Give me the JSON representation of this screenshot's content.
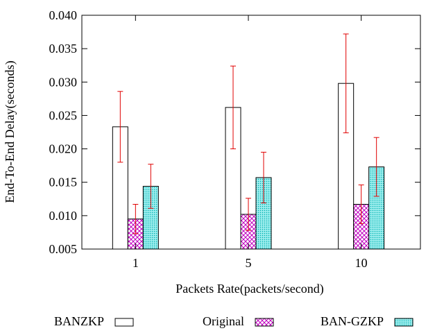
{
  "chart_data": {
    "type": "bar",
    "xlabel": "Packets Rate(packets/second)",
    "ylabel": "End-To-End Delay(seconds)",
    "ylim": [
      0.005,
      0.04
    ],
    "yticks": [
      "0.005",
      "0.010",
      "0.015",
      "0.020",
      "0.025",
      "0.030",
      "0.035",
      "0.040"
    ],
    "categories": [
      "1",
      "5",
      "10"
    ],
    "legend_position": "bottom",
    "error_bar_color": "#e00000",
    "series": [
      {
        "name": "BANZKP",
        "pattern": "empty",
        "color": "#000000",
        "values": [
          0.0233,
          0.0262,
          0.0298
        ],
        "errors": [
          0.0053,
          0.0062,
          0.0074
        ]
      },
      {
        "name": "Original",
        "pattern": "crosshatch",
        "color": "#c000c0",
        "values": [
          0.0095,
          0.0102,
          0.0117
        ],
        "errors": [
          0.0022,
          0.0024,
          0.0029
        ]
      },
      {
        "name": "BAN-GZKP",
        "pattern": "dotted",
        "color": "#00c0c0",
        "values": [
          0.0144,
          0.0157,
          0.0173
        ],
        "errors": [
          0.0033,
          0.0038,
          0.0044
        ]
      }
    ]
  }
}
